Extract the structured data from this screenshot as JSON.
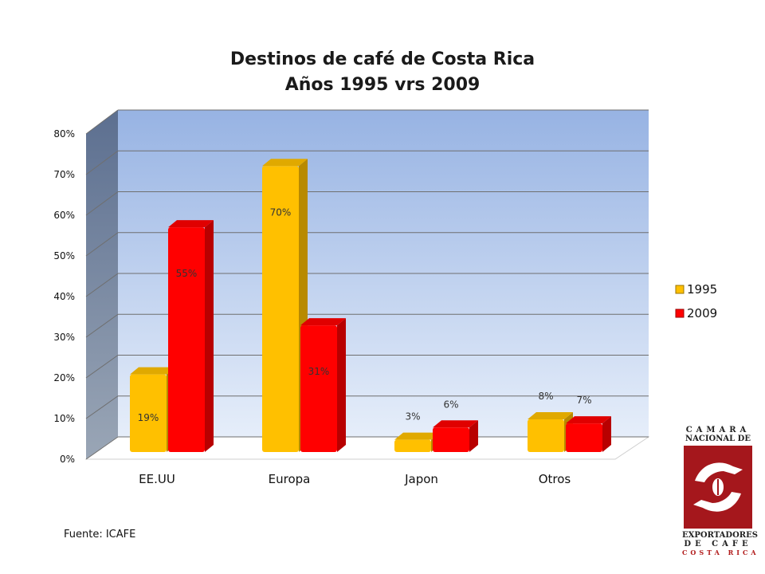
{
  "chart_data": {
    "type": "bar",
    "title": "Destinos de café de Costa Rica",
    "subtitle": "Años 1995 vrs 2009",
    "categories": [
      "EE.UU",
      "Europa",
      "Japon",
      "Otros"
    ],
    "series": [
      {
        "name": "1995",
        "values": [
          19,
          70,
          3,
          8
        ],
        "labels": [
          "19%",
          "70%",
          "3%",
          "8%"
        ],
        "color": "#ffc000"
      },
      {
        "name": "2009",
        "values": [
          55,
          31,
          6,
          7
        ],
        "labels": [
          "55%",
          "31%",
          "6%",
          "7%"
        ],
        "color": "#ff0000"
      }
    ],
    "ylim": [
      0,
      80
    ],
    "yticks": [
      0,
      10,
      20,
      30,
      40,
      50,
      60,
      70,
      80
    ],
    "ytick_labels": [
      "0%",
      "10%",
      "20%",
      "30%",
      "40%",
      "50%",
      "60%",
      "70%",
      "80%"
    ],
    "grid": true,
    "legend": "right",
    "style": "3d-column"
  },
  "source": "Fuente: ICAFE",
  "logo": {
    "line1": "CAMARA",
    "line2": "NACIONAL DE",
    "line3": "EXPORTADORES",
    "line4": "DE CAFE",
    "line5": "COSTA RICA"
  }
}
